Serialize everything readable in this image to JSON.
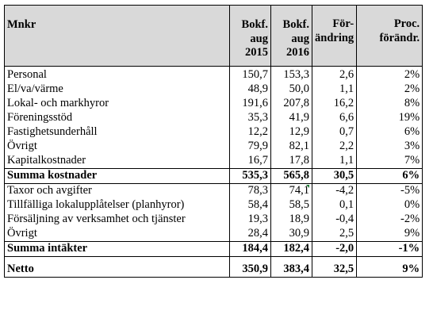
{
  "table": {
    "header": {
      "label": "Mnkr",
      "col1": [
        "Bokf.",
        "aug",
        "2015"
      ],
      "col2": [
        "Bokf.",
        "aug",
        "2016"
      ],
      "col3": [
        "För-",
        "ändring"
      ],
      "col4": [
        "Proc.",
        "förändr."
      ]
    },
    "cost_rows": [
      {
        "label": "Personal",
        "v2015": "150,7",
        "v2016": "153,3",
        "change": "2,6",
        "pct": "2%"
      },
      {
        "label": "El/va/värme",
        "v2015": "48,9",
        "v2016": "50,0",
        "change": "1,1",
        "pct": "2%"
      },
      {
        "label": "Lokal- och markhyror",
        "v2015": "191,6",
        "v2016": "207,8",
        "change": "16,2",
        "pct": "8%"
      },
      {
        "label": "Föreningsstöd",
        "v2015": "35,3",
        "v2016": "41,9",
        "change": "6,6",
        "pct": "19%"
      },
      {
        "label": "Fastighetsunderhåll",
        "v2015": "12,2",
        "v2016": "12,9",
        "change": "0,7",
        "pct": "6%"
      },
      {
        "label": "Övrigt",
        "v2015": "79,9",
        "v2016": "82,1",
        "change": "2,2",
        "pct": "3%"
      },
      {
        "label": "Kapitalkostnader",
        "v2015": "16,7",
        "v2016": "17,8",
        "change": "1,1",
        "pct": "7%"
      }
    ],
    "cost_sum": {
      "label": "Summa kostnader",
      "v2015": "535,3",
      "v2016": "565,8",
      "change": "30,5",
      "pct": "6%"
    },
    "income_rows": [
      {
        "label": "Taxor och avgifter",
        "v2015": "78,3",
        "v2016": "74,1",
        "change": "-4,2",
        "pct": "-5%"
      },
      {
        "label": "Tillfälliga lokalupplåtelser (planhyror)",
        "v2015": "58,4",
        "v2016": "58,5",
        "change": "0,1",
        "pct": "0%"
      },
      {
        "label": "Försäljning av verksamhet och tjänster",
        "v2015": "19,3",
        "v2016": "18,9",
        "change": "-0,4",
        "pct": "-2%"
      },
      {
        "label": "Övrigt",
        "v2015": "28,4",
        "v2016": "30,9",
        "change": "2,5",
        "pct": "9%"
      }
    ],
    "income_sum": {
      "label": "Summa intäkter",
      "v2015": "184,4",
      "v2016": "182,4",
      "change": "-2,0",
      "pct": "-1%"
    },
    "net": {
      "label": "Netto",
      "v2015": "350,9",
      "v2016": "383,4",
      "change": "32,5",
      "pct": "9%"
    },
    "colors": {
      "header_bg": "#d9d9d9",
      "border": "#000000",
      "cell_marker": "#1e7b34"
    }
  }
}
